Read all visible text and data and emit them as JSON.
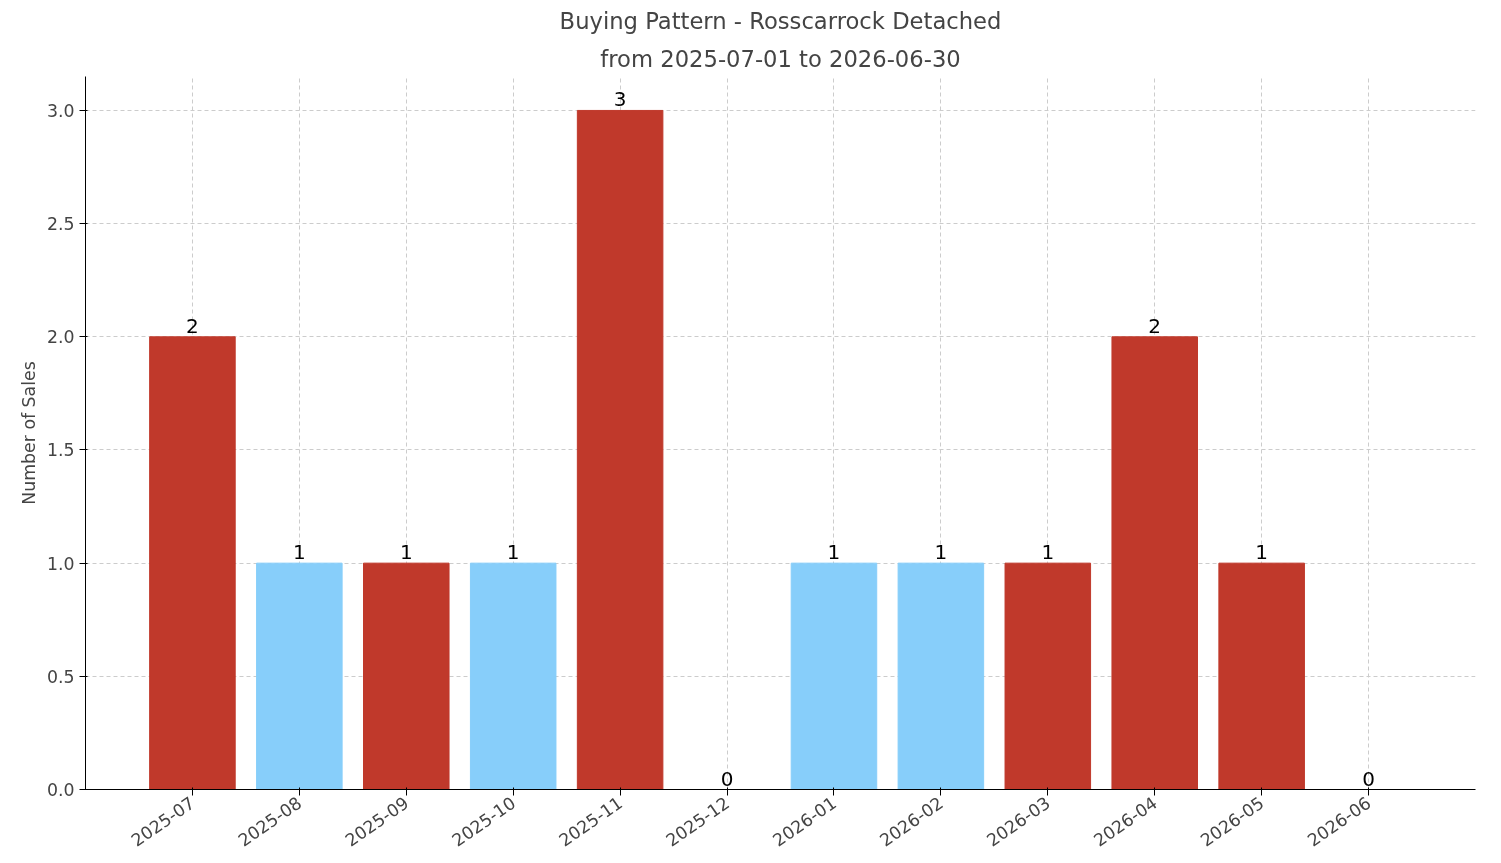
{
  "chart_data": {
    "type": "bar",
    "title": "Buying Pattern - Rosscarrock Detached",
    "subtitle": "from 2025-07-01 to 2026-06-30",
    "ylabel": "Number of Sales",
    "categories": [
      "2025-07",
      "2025-08",
      "2025-09",
      "2025-10",
      "2025-11",
      "2025-12",
      "2026-01",
      "2026-02",
      "2026-03",
      "2026-04",
      "2026-05",
      "2026-06"
    ],
    "values": [
      2,
      1,
      1,
      1,
      3,
      0,
      1,
      1,
      1,
      2,
      1,
      0
    ],
    "colors": [
      "#c0392b",
      "#87cefa",
      "#c0392b",
      "#87cefa",
      "#c0392b",
      "#87cefa",
      "#87cefa",
      "#87cefa",
      "#c0392b",
      "#c0392b",
      "#c0392b",
      "#87cefa"
    ],
    "ylim": [
      0,
      3.15
    ],
    "yticks": [
      {
        "value": 0,
        "label": "0.0"
      },
      0.5,
      {
        "value": 1,
        "label": "1.0"
      },
      1.5,
      {
        "value": 2,
        "label": "2.0"
      },
      2.5,
      {
        "value": 3,
        "label": "3.0"
      }
    ],
    "grid": true,
    "data_labels": true
  }
}
